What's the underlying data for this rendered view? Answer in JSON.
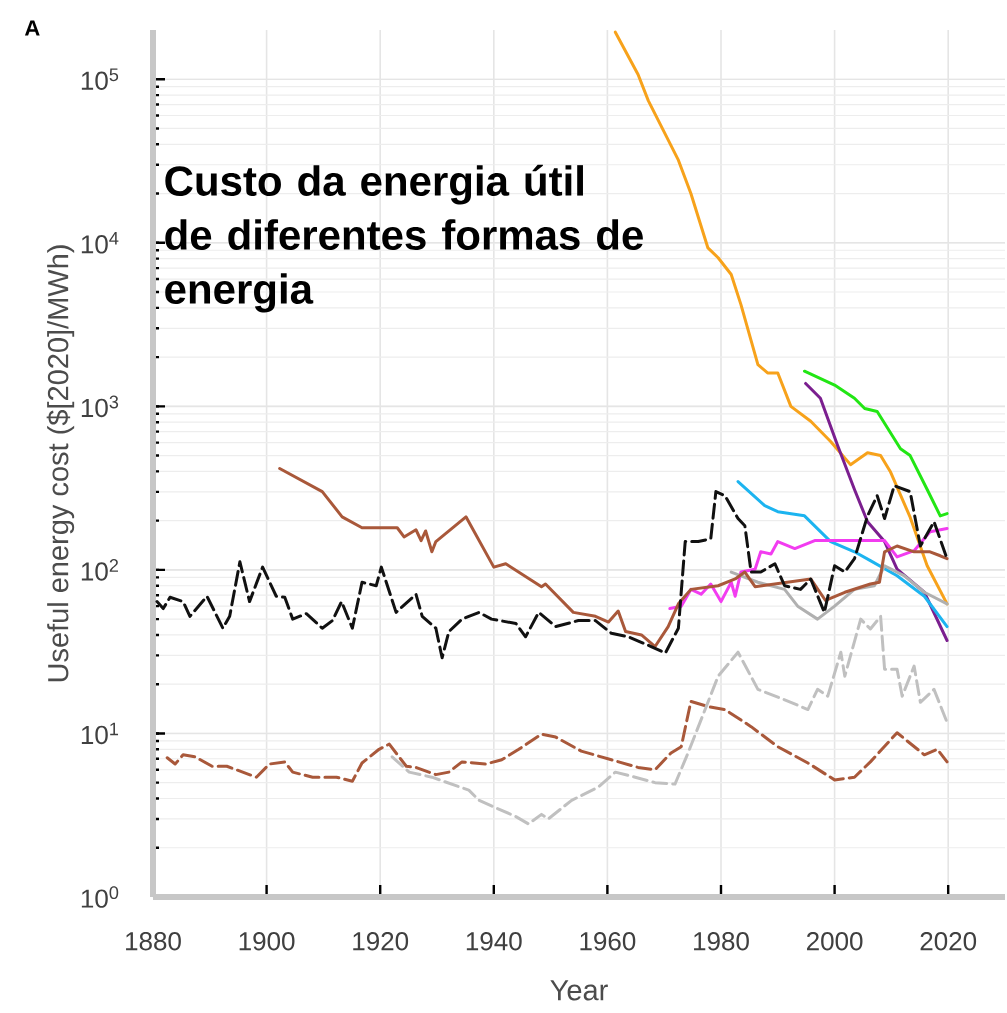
{
  "chart_data": {
    "type": "line",
    "title": "Custo da energia útil de diferentes formas de energia",
    "xlabel": "Year",
    "ylabel": "Useful energy cost ($[2020]/MWh)",
    "annotations": [
      "A"
    ],
    "log": "y",
    "grid": true,
    "xlim": [
      1880,
      2030
    ],
    "xticks": [
      1880,
      1900,
      1920,
      1940,
      1960,
      1980,
      2000,
      2020
    ],
    "ylim": [
      1,
      200000
    ],
    "yticks": [
      {
        "value": 1,
        "label": "10$^{0}$"
      },
      {
        "value": 10,
        "label": "10$^{1}$"
      },
      {
        "value": 100,
        "label": "10$^{2}$"
      },
      {
        "value": 1000,
        "label": "10$^{3}$"
      },
      {
        "value": 10000,
        "label": "10$^{4}$"
      },
      {
        "value": 100000,
        "label": "10$^{5}$"
      }
    ],
    "series": [
      {
        "color": "#f7a21b",
        "line_style": "solid",
        "x": [
          1961.4,
          1965.4,
          1967.2,
          1972.5,
          1974.7,
          1977.7,
          1979.5,
          1981.8,
          1983.5,
          1986.5,
          1988.2,
          1990,
          1992.3,
          1995.8,
          1999.3,
          2002.8,
          2005.8,
          2008.1,
          2009.8,
          2013.3,
          2016.3,
          2019.8
        ],
        "values": [
          194000,
          107000,
          74000,
          32000,
          20000,
          9300,
          8100,
          6400,
          4200,
          1800,
          1600,
          1600,
          1000,
          810,
          610,
          440,
          520,
          500,
          400,
          210,
          106,
          62
        ]
      },
      {
        "color": "#22e614",
        "line_style": "solid",
        "x": [
          1994.7,
          2000,
          2003.5,
          2005.3,
          2007.5,
          2011.6,
          2013.3,
          2016.3,
          2018.6,
          2019.8
        ],
        "values": [
          1640,
          1350,
          1120,
          970,
          930,
          550,
          500,
          310,
          214,
          221
        ]
      },
      {
        "color": "#7b1f8f",
        "line_style": "solid",
        "x": [
          1994.9,
          1997.5,
          2000.5,
          2003.5,
          2005.8,
          2008.8,
          2011,
          2015.8,
          2019.8
        ],
        "values": [
          1380,
          1120,
          580,
          310,
          197,
          149,
          101,
          73,
          37
        ]
      },
      {
        "color": "#1cb4f0",
        "line_style": "solid",
        "x": [
          1983,
          1987.7,
          1990,
          1994.7,
          1999.3,
          2003.5,
          2006.3,
          2011,
          2015.8,
          2019.8
        ],
        "values": [
          347,
          247,
          227,
          214,
          149,
          129,
          114,
          92,
          69,
          45
        ]
      },
      {
        "color": "#f23cf0",
        "line_style": "solid",
        "x": [
          1971,
          1973,
          1974.7,
          1976.5,
          1978.2,
          1980,
          1981.8,
          1982.5,
          1983.5,
          1986,
          1987,
          1988.8,
          1990,
          1993,
          1996.5,
          2008.8,
          2011,
          2014,
          2016.8,
          2019.8
        ],
        "values": [
          58,
          60,
          76,
          71,
          82,
          64,
          84,
          69,
          97,
          101,
          129,
          125,
          149,
          135,
          151,
          151,
          120,
          131,
          171,
          179
        ]
      },
      {
        "color": "#b0b0b0",
        "line_style": "solid",
        "x": [
          1981.8,
          1986.5,
          1991.2,
          1993.5,
          1997,
          2000,
          2003.5,
          2007,
          2008.8,
          2012.3,
          2015.8,
          2019.8
        ],
        "values": [
          97,
          84,
          76,
          60,
          50,
          60,
          76,
          80,
          106,
          92,
          73,
          62
        ]
      },
      {
        "color": "#a9583a",
        "line_style": "solid",
        "x": [
          1902.3,
          1909.8,
          1913.3,
          1916.8,
          1923,
          1924.2,
          1926.3,
          1927.2,
          1928,
          1929.1,
          1929.8,
          1935.1,
          1940,
          1942.1,
          1948.4,
          1949.1,
          1954,
          1957.9,
          1960.2,
          1961.9,
          1963.2,
          1966,
          1968.4,
          1970.7,
          1972.5,
          1974.7,
          1979.5,
          1982.5,
          1984.2,
          1986,
          1995.8,
          1998.4,
          2001.8,
          2006.3,
          2007.9,
          2008.8,
          2011,
          2014,
          2016.8,
          2018.6,
          2019.8
        ],
        "values": [
          417,
          301,
          211,
          181,
          181,
          159,
          176,
          151,
          173,
          129,
          149,
          211,
          104,
          109,
          79,
          82,
          55,
          52,
          48,
          56,
          42,
          40,
          34,
          45,
          62,
          76,
          80,
          88,
          97,
          79,
          88,
          65,
          73,
          82,
          84,
          129,
          140,
          129,
          129,
          122,
          117
        ]
      },
      {
        "color": "#111111",
        "line_style": "dashed",
        "x": [
          1880.7,
          1881.8,
          1883,
          1885.3,
          1886.5,
          1889.5,
          1892.3,
          1893.5,
          1895.3,
          1897,
          1899.3,
          1901.7,
          1903.2,
          1904.6,
          1907,
          1909.8,
          1911.6,
          1913.2,
          1915.1,
          1916.8,
          1919.3,
          1920.2,
          1922.8,
          1926.3,
          1927.4,
          1929.8,
          1930.9,
          1932.1,
          1934.4,
          1937.4,
          1939.6,
          1943.9,
          1945.6,
          1947.9,
          1950.9,
          1954.9,
          1957.9,
          1960.7,
          1963.7,
          1967.7,
          1970.2,
          1972.5,
          1973.7,
          1976,
          1978.2,
          1979.1,
          1980.7,
          1983,
          1984.2,
          1985.3,
          1987,
          1989.5,
          1991.2,
          1994,
          1995.8,
          1998.2,
          2000,
          2001.8,
          2003.5,
          2005.8,
          2007.5,
          2008.8,
          2010.5,
          2013.3,
          2015.1,
          2017.5,
          2019.8
        ],
        "values": [
          64,
          58,
          68,
          64,
          52,
          69,
          44,
          52,
          112,
          64,
          104,
          69,
          68,
          50,
          54,
          44,
          49,
          64,
          44,
          84,
          80,
          104,
          55,
          71,
          52,
          44,
          29,
          42,
          50,
          55,
          50,
          47,
          39,
          55,
          45,
          49,
          49,
          41,
          39,
          34,
          31,
          44,
          149,
          149,
          155,
          301,
          284,
          206,
          186,
          97,
          97,
          109,
          80,
          76,
          88,
          55,
          106,
          97,
          117,
          214,
          284,
          206,
          327,
          301,
          140,
          197,
          117
        ]
      },
      {
        "color": "#a9583a",
        "line_style": "dashed",
        "x": [
          1882.5,
          1883.9,
          1885.3,
          1887.4,
          1890.4,
          1893,
          1895.8,
          1898.2,
          1900.5,
          1903.2,
          1904.6,
          1908.1,
          1912.3,
          1915.1,
          1916.8,
          1919.8,
          1921.6,
          1924.6,
          1926.3,
          1929.8,
          1932.1,
          1934.4,
          1938.6,
          1941.4,
          1944.4,
          1948.4,
          1950.9,
          1955.4,
          1960.7,
          1965.4,
          1968.4,
          1971.2,
          1973,
          1974.7,
          1977.7,
          1980.7,
          1985.3,
          1990,
          1995.3,
          2000,
          2003.5,
          2006.3,
          2011,
          2015.8,
          2018.1,
          2019.8
        ],
        "values": [
          7.1,
          6.5,
          7.4,
          7.2,
          6.3,
          6.3,
          5.8,
          5.4,
          6.5,
          6.7,
          5.8,
          5.4,
          5.4,
          5.1,
          6.6,
          8.0,
          8.6,
          6.3,
          6.2,
          5.6,
          5.8,
          6.7,
          6.5,
          6.9,
          8.0,
          9.9,
          9.5,
          7.8,
          6.9,
          6.2,
          6.0,
          7.6,
          8.3,
          15.7,
          14.6,
          14.0,
          11.0,
          8.3,
          6.6,
          5.2,
          5.4,
          6.7,
          10.1,
          7.4,
          8.0,
          6.7
        ]
      },
      {
        "color": "#c0c0c0",
        "line_style": "dashed",
        "x": [
          1922.1,
          1925.1,
          1929.1,
          1935.6,
          1937.4,
          1943.9,
          1946.1,
          1948.4,
          1949.6,
          1953.7,
          1958.4,
          1961.4,
          1964.9,
          1968.4,
          1971.9,
          1974.2,
          1977.2,
          1979.5,
          1983,
          1986.5,
          1992.3,
          1995.3,
          1997,
          1998.8,
          2001.1,
          2001.8,
          2004.6,
          2006.3,
          2008.1,
          2008.8,
          2011,
          2011.9,
          2014,
          2015.1,
          2017.5,
          2019.8
        ],
        "values": [
          7.2,
          5.8,
          5.4,
          4.5,
          3.9,
          3.1,
          2.8,
          3.2,
          3.0,
          3.9,
          4.7,
          5.8,
          5.4,
          5.0,
          4.9,
          7.6,
          14.0,
          22.4,
          31.4,
          18.6,
          15.5,
          14.0,
          18.6,
          16.9,
          31.4,
          22.4,
          50,
          43.5,
          52,
          24.7,
          24.7,
          16.9,
          25.8,
          15.5,
          18.6,
          11.7
        ]
      }
    ]
  }
}
